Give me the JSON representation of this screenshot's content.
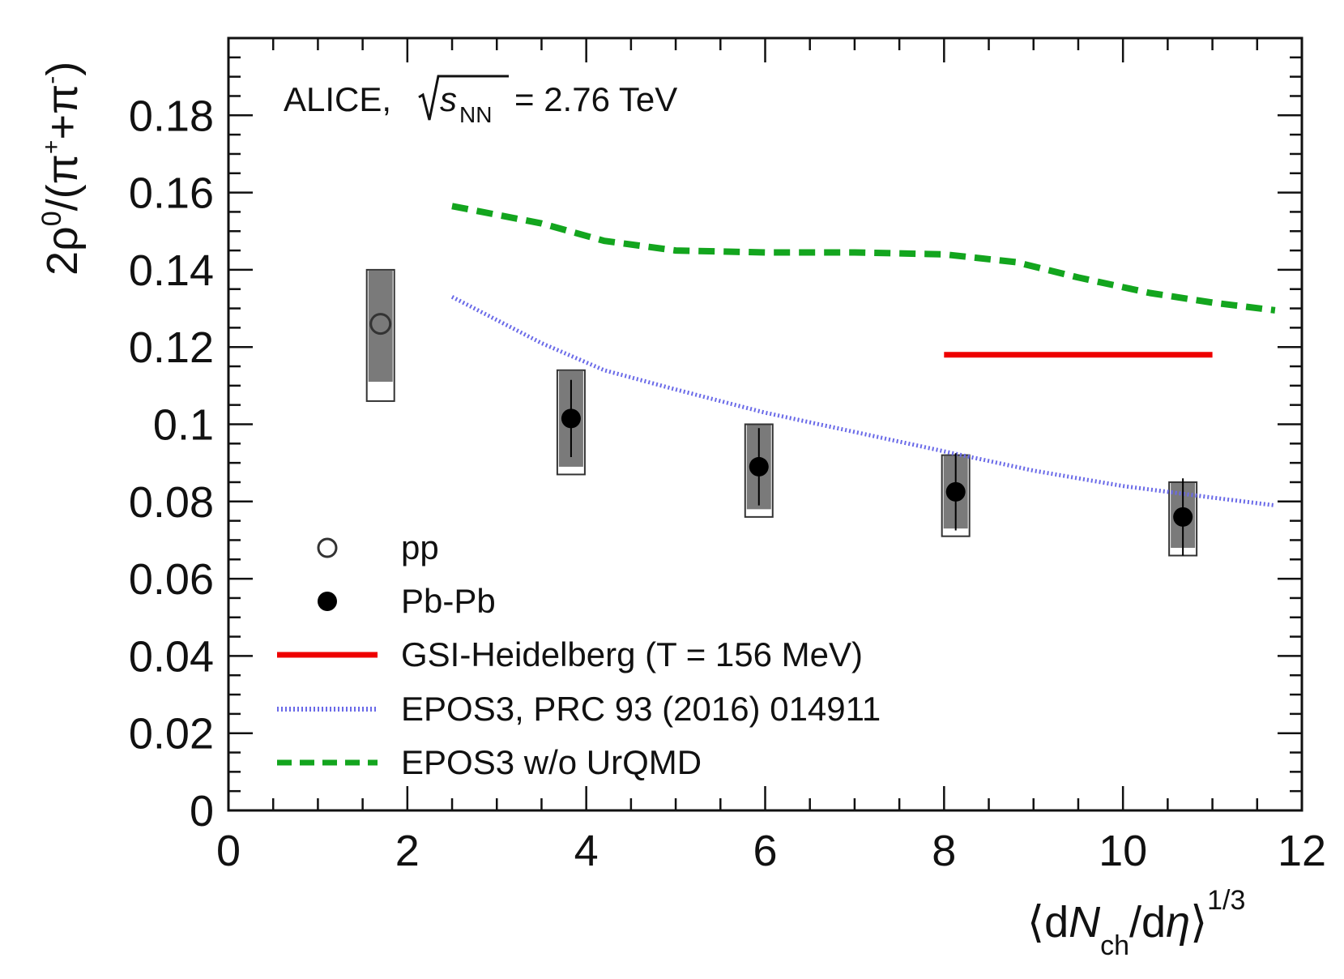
{
  "chart_data": {
    "type": "scatter",
    "title": "",
    "xlabel": "⟨dN_ch/dη⟩^1/3",
    "xlabel_parts": {
      "open": "⟨d",
      "N": "N",
      "ch": "ch",
      "slash": "/d",
      "eta": "η",
      "close": "⟩",
      "exp": "1/3"
    },
    "ylabel": "2ρ0/(π++π-)",
    "ylabel_parts": {
      "pre": "2ρ",
      "zero": "0",
      "mid": "/(π",
      "plus": "+",
      "plus_pi": "+π",
      "minus": "-",
      "close": ")"
    },
    "xlim": [
      0,
      12
    ],
    "ylim": [
      0,
      0.2
    ],
    "x_ticks": [
      0,
      2,
      4,
      6,
      8,
      10,
      12
    ],
    "x_tick_labels": [
      "0",
      "2",
      "4",
      "6",
      "8",
      "10",
      "12"
    ],
    "y_ticks": [
      0,
      0.02,
      0.04,
      0.06,
      0.08,
      0.1,
      0.12,
      0.14,
      0.16,
      0.18
    ],
    "y_tick_labels": [
      "0",
      "0.02",
      "0.04",
      "0.06",
      "0.08",
      "0.1",
      "0.12",
      "0.14",
      "0.16",
      "0.18"
    ],
    "annotation": {
      "experiment": "ALICE,",
      "s": "s",
      "nn": "NN",
      "energy": "= 2.76 TeV"
    },
    "series": [
      {
        "name": "pp",
        "marker": "open-circle",
        "points": [
          {
            "x": 1.7,
            "y": 0.126,
            "stat": 0.0,
            "sys_low": 0.106,
            "sys_high": 0.14,
            "uncorr_low": 0.106,
            "uncorr_high": 0.111
          }
        ]
      },
      {
        "name": "Pb-Pb",
        "marker": "filled-circle",
        "points": [
          {
            "x": 3.83,
            "y": 0.1015,
            "stat": 0.004,
            "sys_low": 0.087,
            "sys_high": 0.114,
            "uncorr_low": 0.087,
            "uncorr_high": 0.089
          },
          {
            "x": 5.93,
            "y": 0.089,
            "stat": 0.004,
            "sys_low": 0.076,
            "sys_high": 0.1,
            "uncorr_low": 0.076,
            "uncorr_high": 0.078
          },
          {
            "x": 8.13,
            "y": 0.0825,
            "stat": 0.004,
            "sys_low": 0.071,
            "sys_high": 0.092,
            "uncorr_low": 0.071,
            "uncorr_high": 0.073
          },
          {
            "x": 10.67,
            "y": 0.076,
            "stat": 0.004,
            "sys_low": 0.066,
            "sys_high": 0.085,
            "uncorr_low": 0.066,
            "uncorr_high": 0.068
          }
        ]
      },
      {
        "name": "GSI-Heidelberg (T = 156 MeV)",
        "line": "solid",
        "color": "#ee0000",
        "x": [
          8.0,
          11.0
        ],
        "y": [
          0.118,
          0.118
        ]
      },
      {
        "name": "EPOS3, PRC 93 (2016) 014911",
        "line": "dotted",
        "color": "#6a6ae8",
        "x": [
          2.5,
          3.5,
          4.2,
          5.0,
          6.0,
          7.0,
          8.0,
          9.0,
          10.0,
          11.0,
          11.7
        ],
        "y": [
          0.133,
          0.121,
          0.114,
          0.109,
          0.103,
          0.098,
          0.093,
          0.088,
          0.084,
          0.081,
          0.079
        ]
      },
      {
        "name": "EPOS3 w/o UrQMD",
        "line": "dashed",
        "color": "#13a51e",
        "x": [
          2.5,
          3.5,
          4.2,
          5.0,
          6.0,
          7.0,
          8.0,
          8.8,
          9.5,
          10.3,
          11.0,
          11.7
        ],
        "y": [
          0.1565,
          0.152,
          0.1475,
          0.145,
          0.1445,
          0.1445,
          0.144,
          0.142,
          0.138,
          0.134,
          0.1315,
          0.1295
        ]
      }
    ],
    "legend": [
      {
        "label": "pp",
        "symbol": "open-circle"
      },
      {
        "label": "Pb-Pb",
        "symbol": "filled-circle"
      },
      {
        "label": "GSI-Heidelberg (T = 156 MeV)",
        "symbol": "solid-line",
        "color": "#ee0000"
      },
      {
        "label": "EPOS3, PRC 93 (2016) 014911",
        "symbol": "dotted-line",
        "color": "#6a6ae8"
      },
      {
        "label": "EPOS3 w/o UrQMD",
        "symbol": "dashed-line",
        "color": "#13a51e"
      }
    ],
    "legend_position": "bottom-left",
    "grid": false
  }
}
